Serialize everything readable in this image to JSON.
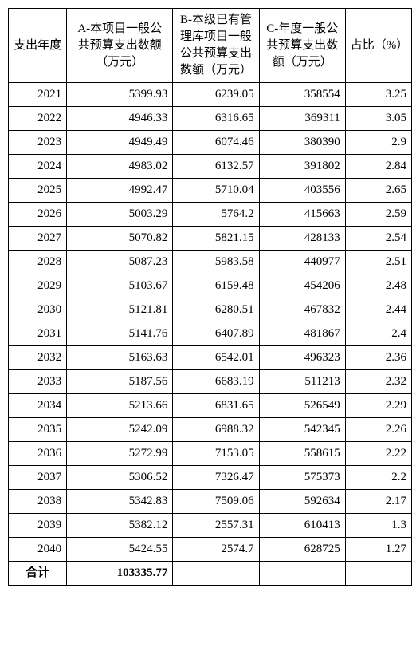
{
  "table": {
    "headers": {
      "year": "支出年度",
      "colA": "A-本项目一般公共预算支出数额（万元）",
      "colB": "B-本级已有管理库项目一般公共预算支出数额（万元）",
      "colC": "C-年度一般公共预算支出数额（万元）",
      "pct": "占比（%）"
    },
    "rows": [
      {
        "year": "2021",
        "a": "5399.93",
        "b": "6239.05",
        "c": "358554",
        "pct": "3.25"
      },
      {
        "year": "2022",
        "a": "4946.33",
        "b": "6316.65",
        "c": "369311",
        "pct": "3.05"
      },
      {
        "year": "2023",
        "a": "4949.49",
        "b": "6074.46",
        "c": "380390",
        "pct": "2.9"
      },
      {
        "year": "2024",
        "a": "4983.02",
        "b": "6132.57",
        "c": "391802",
        "pct": "2.84"
      },
      {
        "year": "2025",
        "a": "4992.47",
        "b": "5710.04",
        "c": "403556",
        "pct": "2.65"
      },
      {
        "year": "2026",
        "a": "5003.29",
        "b": "5764.2",
        "c": "415663",
        "pct": "2.59"
      },
      {
        "year": "2027",
        "a": "5070.82",
        "b": "5821.15",
        "c": "428133",
        "pct": "2.54"
      },
      {
        "year": "2028",
        "a": "5087.23",
        "b": "5983.58",
        "c": "440977",
        "pct": "2.51"
      },
      {
        "year": "2029",
        "a": "5103.67",
        "b": "6159.48",
        "c": "454206",
        "pct": "2.48"
      },
      {
        "year": "2030",
        "a": "5121.81",
        "b": "6280.51",
        "c": "467832",
        "pct": "2.44"
      },
      {
        "year": "2031",
        "a": "5141.76",
        "b": "6407.89",
        "c": "481867",
        "pct": "2.4"
      },
      {
        "year": "2032",
        "a": "5163.63",
        "b": "6542.01",
        "c": "496323",
        "pct": "2.36"
      },
      {
        "year": "2033",
        "a": "5187.56",
        "b": "6683.19",
        "c": "511213",
        "pct": "2.32"
      },
      {
        "year": "2034",
        "a": "5213.66",
        "b": "6831.65",
        "c": "526549",
        "pct": "2.29"
      },
      {
        "year": "2035",
        "a": "5242.09",
        "b": "6988.32",
        "c": "542345",
        "pct": "2.26"
      },
      {
        "year": "2036",
        "a": "5272.99",
        "b": "7153.05",
        "c": "558615",
        "pct": "2.22"
      },
      {
        "year": "2037",
        "a": "5306.52",
        "b": "7326.47",
        "c": "575373",
        "pct": "2.2"
      },
      {
        "year": "2038",
        "a": "5342.83",
        "b": "7509.06",
        "c": "592634",
        "pct": "2.17"
      },
      {
        "year": "2039",
        "a": "5382.12",
        "b": "2557.31",
        "c": "610413",
        "pct": "1.3"
      },
      {
        "year": "2040",
        "a": "5424.55",
        "b": "2574.7",
        "c": "628725",
        "pct": "1.27"
      }
    ],
    "footer": {
      "label": "合计",
      "totalA": "103335.77",
      "totalB": "",
      "totalC": "",
      "totalPct": ""
    }
  }
}
